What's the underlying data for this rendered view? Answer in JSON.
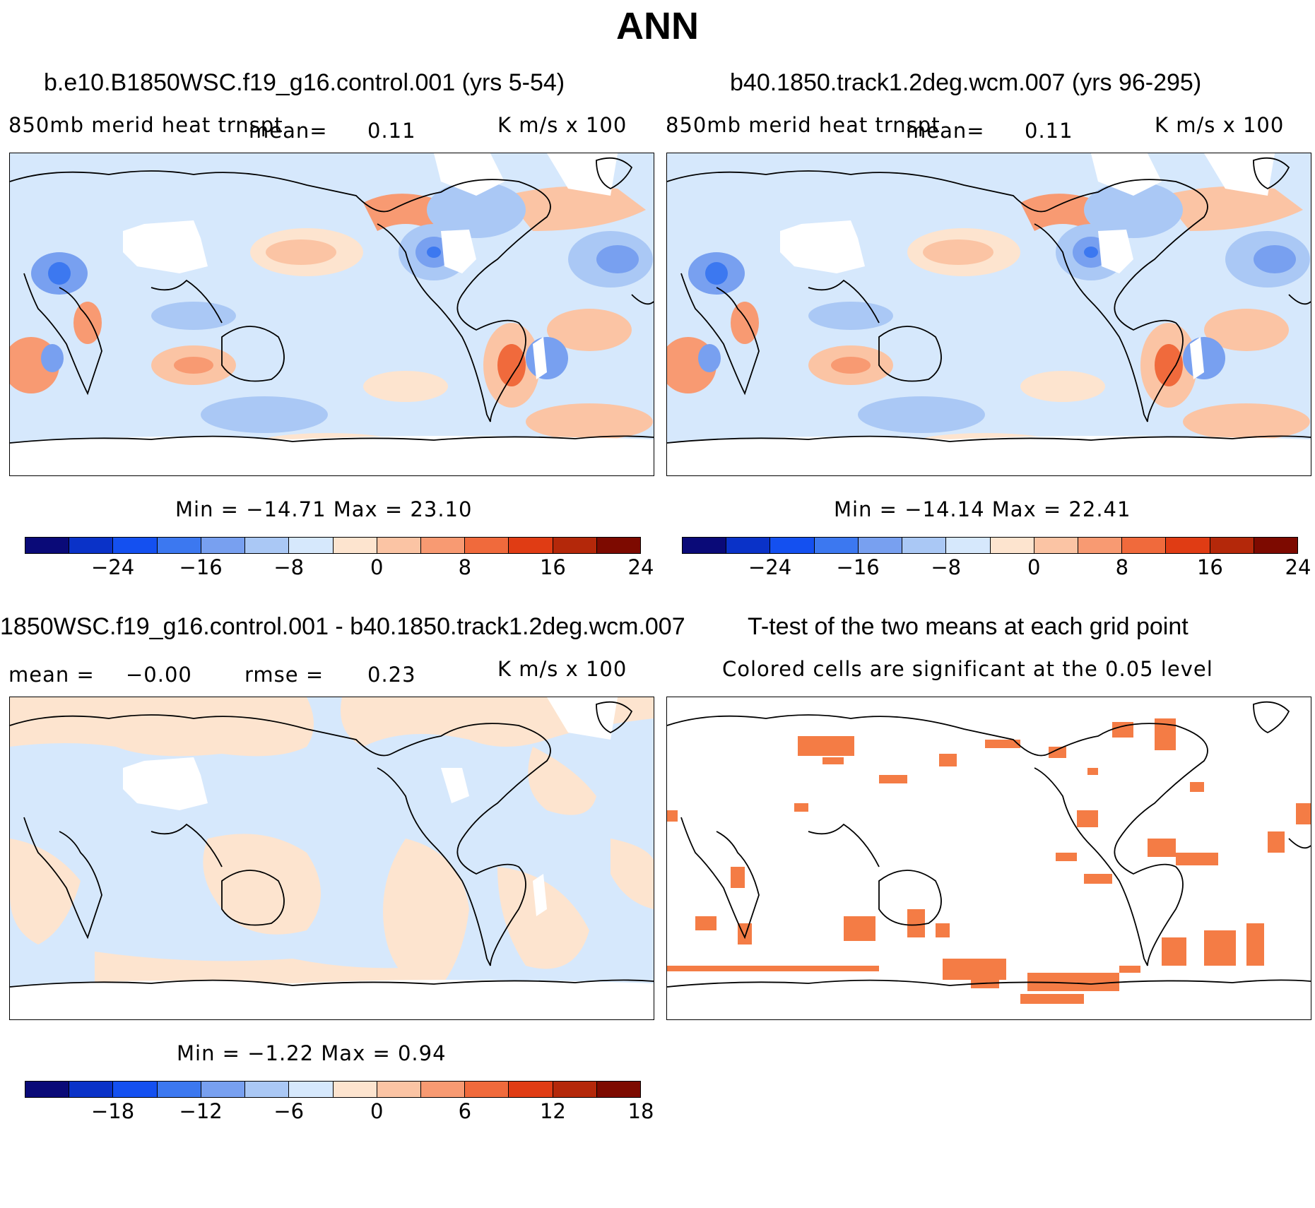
{
  "main_title": "ANN",
  "panels": {
    "p1": {
      "title": "b.e10.B1850WSC.f19_g16.control.001 (yrs 5-54)",
      "variable": "850mb merid heat trnspt",
      "mean_label": "mean=",
      "mean_value": "0.11",
      "units": "K m/s x 100",
      "minmax": "Min = −14.71 Max =  23.10"
    },
    "p2": {
      "title": "b40.1850.track1.2deg.wcm.007 (yrs 96-295)",
      "variable": "850mb merid heat trnspt",
      "mean_label": "mean=",
      "mean_value": "0.11",
      "units": "K m/s x 100",
      "minmax": "Min = −14.14 Max =  22.41"
    },
    "p3": {
      "title": "1850WSC.f19_g16.control.001 - b40.1850.track1.2deg.wcm.007",
      "mean_label": "mean =",
      "mean_value": "−0.00",
      "rmse_label": "rmse =",
      "rmse_value": "0.23",
      "units": "K m/s x 100",
      "minmax": "Min =  −1.22 Max =   0.94"
    },
    "p4": {
      "title": "T-test of the two means at each grid point",
      "subtitle": "Colored cells are significant at the 0.05 level"
    }
  },
  "colorbar_colors": [
    "#0a0a78",
    "#0a32c8",
    "#1450f0",
    "#3c78f0",
    "#78a0f0",
    "#aac8f5",
    "#d6e8fc",
    "#fde4cf",
    "#fbc4a4",
    "#f89a72",
    "#f06a3c",
    "#e03c14",
    "#b4280a",
    "#7d0a00"
  ],
  "colorbars": {
    "top": {
      "ticks": [
        "−24",
        "−16",
        "−8",
        "0",
        "8",
        "16",
        "24"
      ]
    },
    "diff": {
      "ticks": [
        "−18",
        "−12",
        "−6",
        "0",
        "6",
        "12",
        "18"
      ]
    }
  },
  "significance_color": "#f47c45",
  "map_colors": {
    "neg_light": "#d6e8fc",
    "neg_mid": "#aac8f5",
    "neg_strong": "#78a0f0",
    "neg_deep": "#3c78f0",
    "pos_light": "#fde4cf",
    "pos_mid": "#fbc4a4",
    "pos_strong": "#f89a72",
    "pos_deep": "#f06a3c",
    "missing": "#ffffff"
  }
}
